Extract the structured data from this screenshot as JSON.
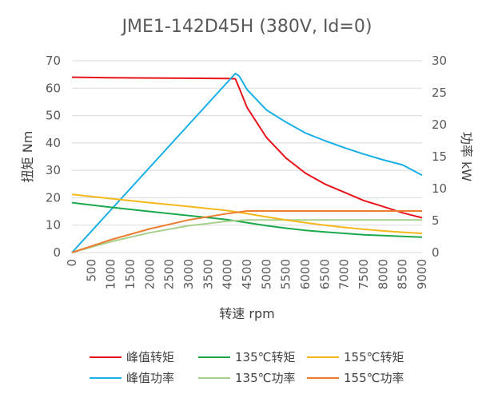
{
  "chart_data": {
    "type": "line",
    "title": "JME1-142D45H (380V, Id=0)",
    "xlabel": "转速 rpm",
    "ylabel": "扭矩 Nm",
    "y2label": "功率 kW",
    "xlim": [
      0,
      9000
    ],
    "ylim": [
      0,
      70
    ],
    "y2lim": [
      0,
      30
    ],
    "xticks": [
      "0",
      "500",
      "1000",
      "1500",
      "2000",
      "2500",
      "3000",
      "3500",
      "4000",
      "4500",
      "5000",
      "5500",
      "6000",
      "6500",
      "7000",
      "7500",
      "8000",
      "8500",
      "9000"
    ],
    "yticks": [
      "0",
      "10",
      "20",
      "30",
      "40",
      "50",
      "60",
      "70"
    ],
    "y2ticks": [
      "0",
      "5",
      "10",
      "15",
      "20",
      "25",
      "30"
    ],
    "grid": "horizontal",
    "legend_position": "bottom",
    "series": [
      {
        "name": "峰值转矩",
        "axis": "left",
        "color": "#e8141c",
        "x": [
          0,
          1000,
          2000,
          3000,
          4000,
          4200,
          4300,
          4500,
          5000,
          5500,
          6000,
          6500,
          7000,
          7500,
          8000,
          8500,
          9000
        ],
        "y": [
          64,
          63.8,
          63.7,
          63.6,
          63.5,
          63.4,
          60,
          53,
          42,
          34.5,
          29,
          25,
          22,
          19,
          16.8,
          14.5,
          12.7
        ]
      },
      {
        "name": "峰值功率",
        "axis": "right",
        "color": "#1aafe6",
        "x": [
          0,
          4200,
          4300,
          4500,
          5000,
          5500,
          6000,
          6500,
          7000,
          7500,
          8000,
          8500,
          9000
        ],
        "y": [
          0,
          28,
          27.6,
          25.5,
          22.3,
          20.4,
          18.7,
          17.5,
          16.4,
          15.4,
          14.5,
          13.7,
          12.1
        ]
      },
      {
        "name": "135℃转矩",
        "axis": "left",
        "color": "#1ba94c",
        "x": [
          0,
          1000,
          2000,
          3000,
          4000,
          4500,
          5000,
          5500,
          6000,
          6500,
          7000,
          7500,
          8000,
          8500,
          9000
        ],
        "y": [
          18.2,
          16.5,
          15,
          13.5,
          12,
          10.9,
          9.8,
          8.9,
          8.1,
          7.5,
          7,
          6.5,
          6.2,
          5.9,
          5.6
        ]
      },
      {
        "name": "135℃功率",
        "axis": "right",
        "color": "#a8d08d",
        "x": [
          0,
          1000,
          2000,
          3000,
          4000,
          4500,
          5000,
          6000,
          7000,
          8000,
          9000
        ],
        "y": [
          0,
          1.7,
          3.1,
          4.2,
          4.9,
          5.1,
          5.1,
          5.1,
          5.1,
          5.1,
          5.1
        ]
      },
      {
        "name": "155℃转矩",
        "axis": "left",
        "color": "#f5b81c",
        "x": [
          0,
          1000,
          2000,
          3000,
          4000,
          4500,
          5000,
          5500,
          6000,
          6500,
          7000,
          7500,
          8000,
          8500,
          9000
        ],
        "y": [
          21.2,
          19.7,
          18.2,
          16.8,
          15.3,
          14.2,
          13,
          11.9,
          10.9,
          10,
          9.2,
          8.5,
          7.9,
          7.4,
          7
        ]
      },
      {
        "name": "155℃功率",
        "axis": "right",
        "color": "#ed7d31",
        "x": [
          0,
          1000,
          2000,
          3000,
          4000,
          4500,
          5000,
          6000,
          7000,
          8000,
          9000
        ],
        "y": [
          0,
          2,
          3.7,
          5.1,
          6.1,
          6.5,
          6.5,
          6.5,
          6.5,
          6.5,
          6.5
        ]
      }
    ]
  }
}
